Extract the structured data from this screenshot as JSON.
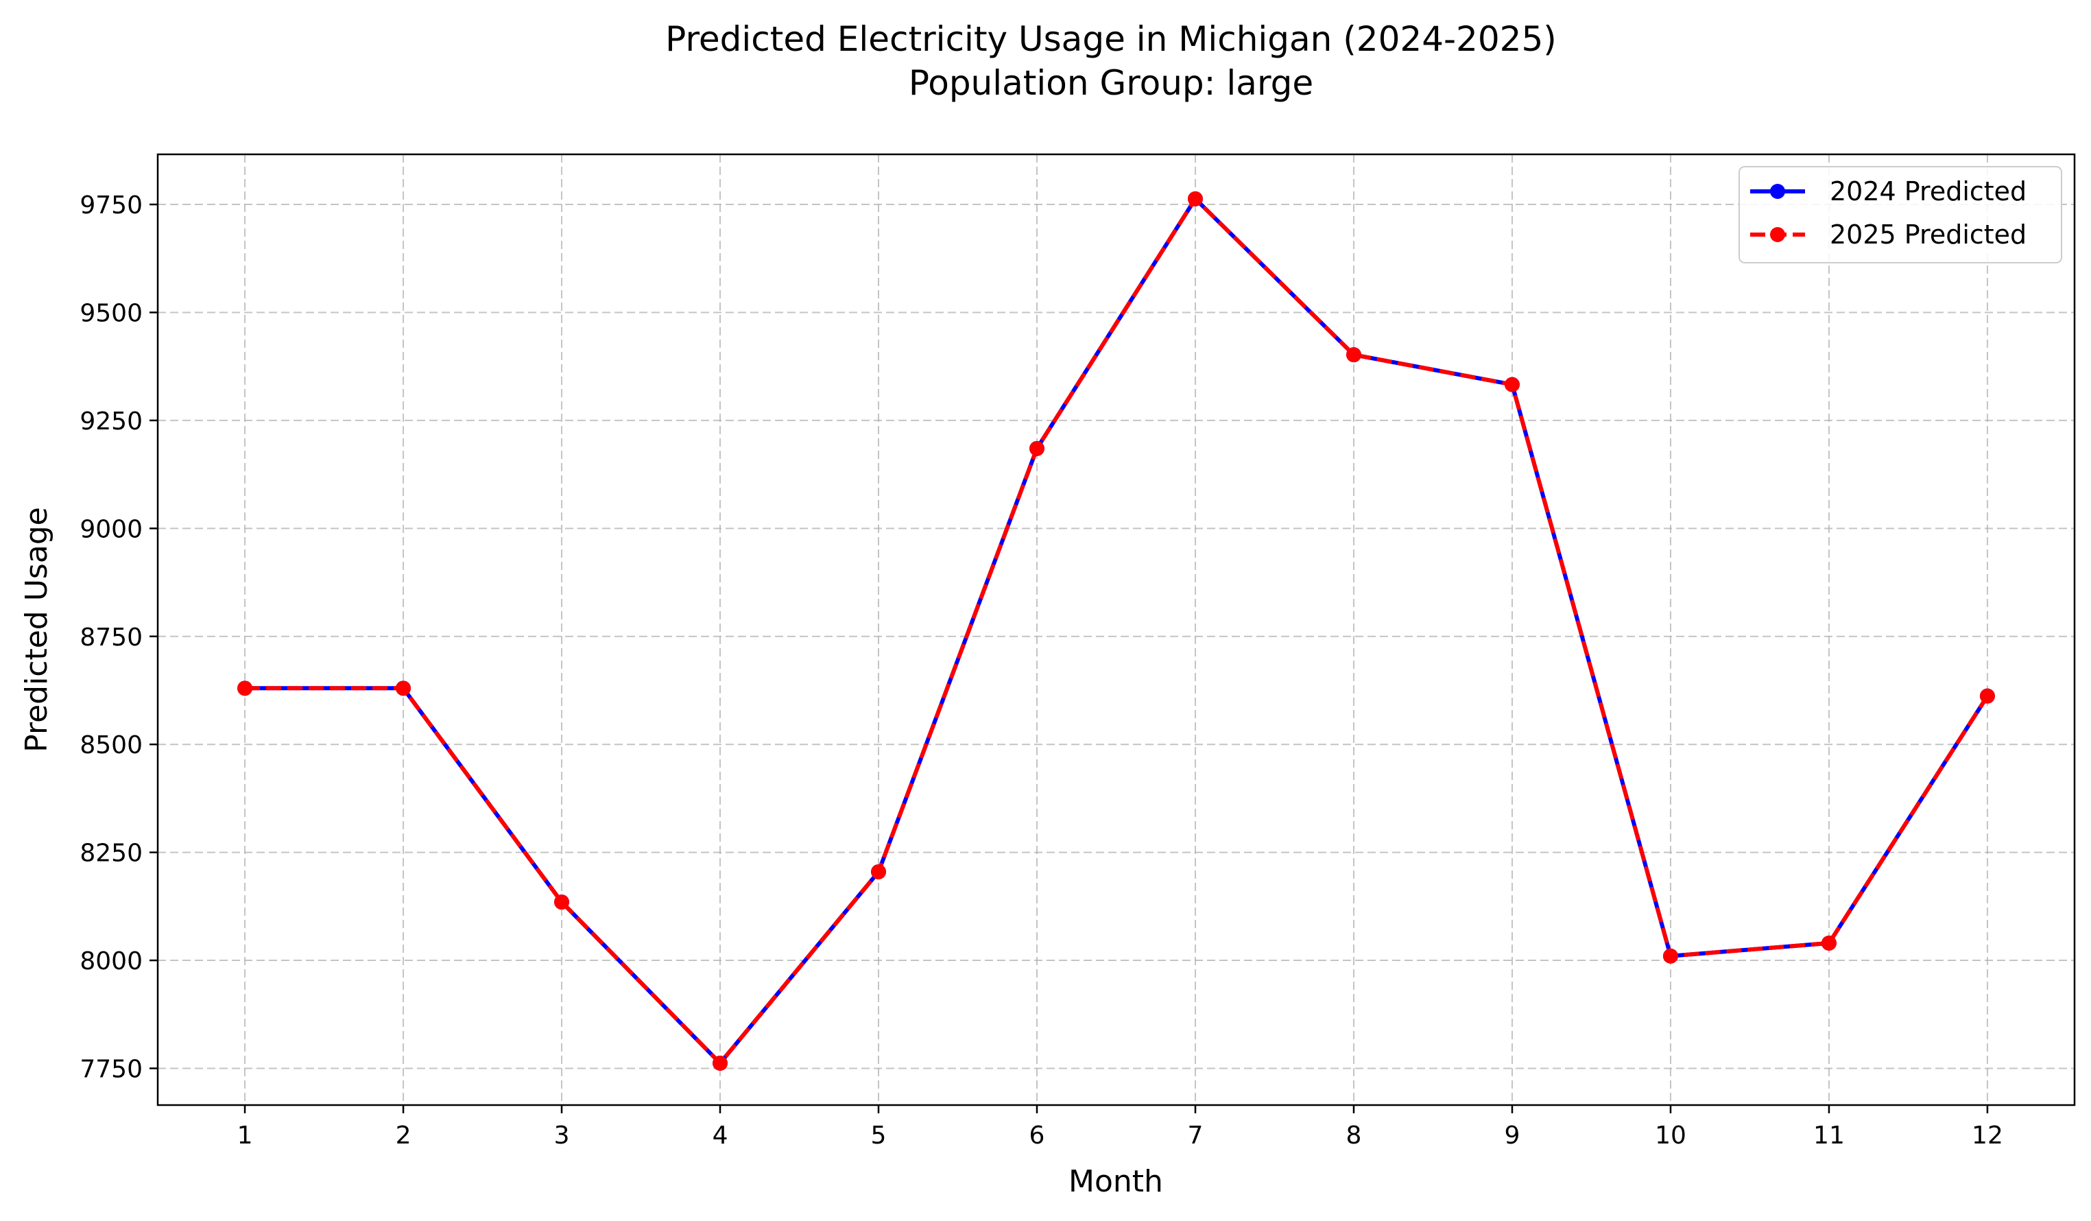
{
  "chart_data": {
    "type": "line",
    "title": "Predicted Electricity Usage in Michigan (2024-2025)",
    "subtitle": "Population Group: large",
    "xlabel": "Month",
    "ylabel": "Predicted Usage",
    "x": [
      1,
      2,
      3,
      4,
      5,
      6,
      7,
      8,
      9,
      10,
      11,
      12
    ],
    "x_tick_labels": [
      "1",
      "2",
      "3",
      "4",
      "5",
      "6",
      "7",
      "8",
      "9",
      "10",
      "11",
      "12"
    ],
    "xlim": [
      0.45,
      12.55
    ],
    "ylim": [
      7665,
      9866
    ],
    "y_ticks": [
      7750,
      8000,
      8250,
      8500,
      8750,
      9000,
      9250,
      9500,
      9750
    ],
    "y_tick_labels": [
      "7750",
      "8000",
      "8250",
      "8500",
      "8750",
      "9000",
      "9250",
      "9500",
      "9750"
    ],
    "grid": true,
    "grid_style": "dashed",
    "legend_position": "top-right",
    "series": [
      {
        "name": "2024 Predicted",
        "color": "#0000ff",
        "line_style": "solid",
        "marker": "circle",
        "values": [
          8630,
          8630,
          8135,
          7762,
          8205,
          9185,
          9763,
          9402,
          9333,
          8010,
          8040,
          8612
        ]
      },
      {
        "name": "2025 Predicted",
        "color": "#ff0000",
        "line_style": "dashed",
        "marker": "circle",
        "values": [
          8630,
          8630,
          8135,
          7762,
          8205,
          9185,
          9763,
          9402,
          9333,
          8010,
          8040,
          8612
        ]
      }
    ]
  }
}
